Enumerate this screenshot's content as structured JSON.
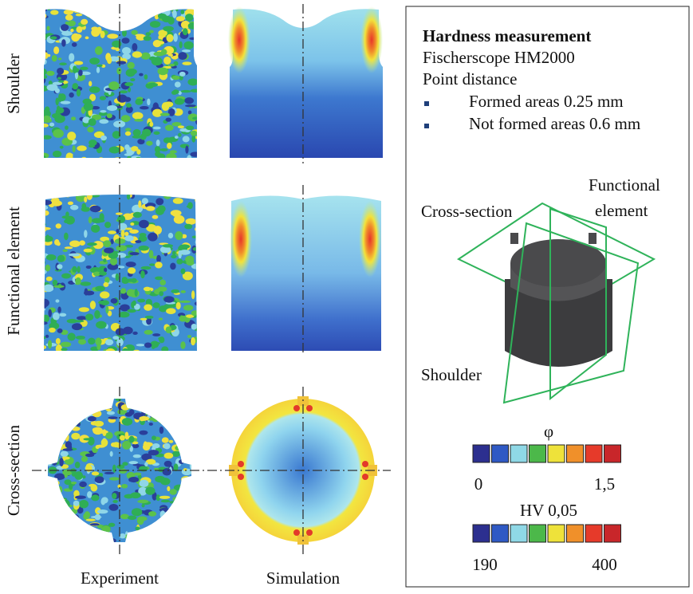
{
  "row_labels": [
    "Shoulder",
    "Functional element",
    "Cross-section"
  ],
  "column_labels": [
    "Experiment",
    "Simulation"
  ],
  "legend": {
    "title": "Hardness measurement",
    "device": "Fischerscope HM2000",
    "point_distance": "Point distance",
    "bullets": [
      "Formed areas 0.25 mm",
      "Not formed areas 0.6 mm"
    ]
  },
  "model_labels": {
    "cross_section": "Cross-section",
    "functional_element": [
      "Functional",
      "element"
    ],
    "shoulder": "Shoulder"
  },
  "scales": [
    {
      "title": "φ",
      "min_label": "0",
      "max_label": "1,5"
    },
    {
      "title": "HV 0,05",
      "min_label": "190",
      "max_label": "400"
    }
  ]
}
